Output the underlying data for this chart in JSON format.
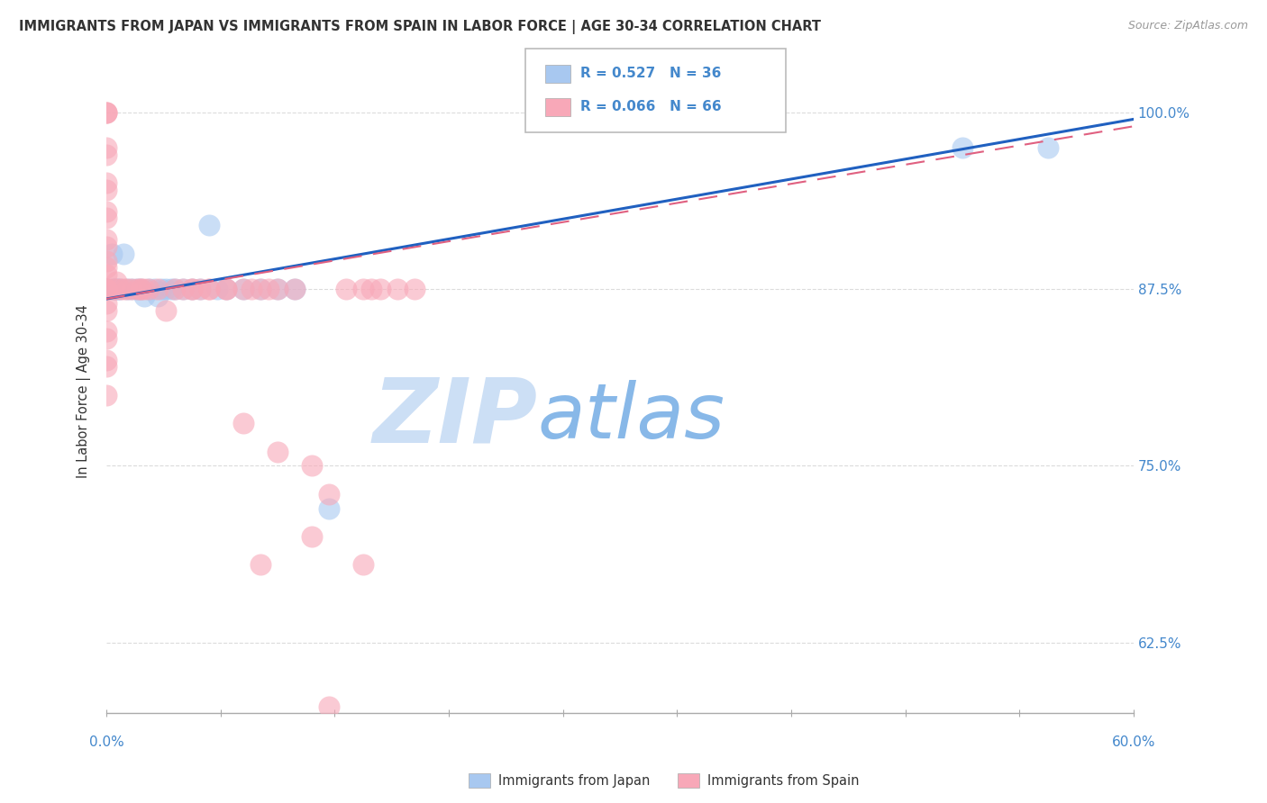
{
  "title": "IMMIGRANTS FROM JAPAN VS IMMIGRANTS FROM SPAIN IN LABOR FORCE | AGE 30-34 CORRELATION CHART",
  "source": "Source: ZipAtlas.com",
  "ylabel": "In Labor Force | Age 30-34",
  "ytick_labels": [
    "100.0%",
    "87.5%",
    "75.0%",
    "62.5%"
  ],
  "ytick_values": [
    1.0,
    0.875,
    0.75,
    0.625
  ],
  "xlim": [
    0.0,
    0.6
  ],
  "ylim": [
    0.575,
    1.03
  ],
  "legend_japan_r": "R = 0.527",
  "legend_japan_n": "N = 36",
  "legend_spain_r": "R = 0.066",
  "legend_spain_n": "N = 66",
  "japan_color": "#a8c8f0",
  "spain_color": "#f8a8b8",
  "japan_line_color": "#2060c0",
  "spain_line_color": "#e06080",
  "watermark_zip_color": "#ccdff5",
  "watermark_atlas_color": "#88b8e8",
  "grid_color": "#cccccc",
  "title_color": "#333333",
  "axis_label_color": "#4488cc",
  "japan_points": [
    [
      0.0,
      0.875
    ],
    [
      0.0,
      0.875
    ],
    [
      0.0,
      0.875
    ],
    [
      0.002,
      0.875
    ],
    [
      0.003,
      0.9
    ],
    [
      0.004,
      0.875
    ],
    [
      0.005,
      0.875
    ],
    [
      0.006,
      0.875
    ],
    [
      0.007,
      0.875
    ],
    [
      0.008,
      0.875
    ],
    [
      0.01,
      0.9
    ],
    [
      0.012,
      0.875
    ],
    [
      0.015,
      0.875
    ],
    [
      0.018,
      0.875
    ],
    [
      0.02,
      0.875
    ],
    [
      0.022,
      0.87
    ],
    [
      0.025,
      0.875
    ],
    [
      0.028,
      0.875
    ],
    [
      0.03,
      0.87
    ],
    [
      0.032,
      0.875
    ],
    [
      0.035,
      0.875
    ],
    [
      0.038,
      0.875
    ],
    [
      0.04,
      0.875
    ],
    [
      0.045,
      0.875
    ],
    [
      0.05,
      0.875
    ],
    [
      0.055,
      0.875
    ],
    [
      0.06,
      0.92
    ],
    [
      0.065,
      0.875
    ],
    [
      0.07,
      0.875
    ],
    [
      0.08,
      0.875
    ],
    [
      0.09,
      0.875
    ],
    [
      0.1,
      0.875
    ],
    [
      0.11,
      0.875
    ],
    [
      0.13,
      0.72
    ],
    [
      0.5,
      0.975
    ],
    [
      0.55,
      0.975
    ]
  ],
  "spain_points": [
    [
      0.0,
      1.0
    ],
    [
      0.0,
      1.0
    ],
    [
      0.0,
      1.0
    ],
    [
      0.0,
      0.975
    ],
    [
      0.0,
      0.97
    ],
    [
      0.0,
      0.95
    ],
    [
      0.0,
      0.945
    ],
    [
      0.0,
      0.93
    ],
    [
      0.0,
      0.925
    ],
    [
      0.0,
      0.91
    ],
    [
      0.0,
      0.905
    ],
    [
      0.0,
      0.895
    ],
    [
      0.0,
      0.89
    ],
    [
      0.0,
      0.885
    ],
    [
      0.0,
      0.875
    ],
    [
      0.0,
      0.875
    ],
    [
      0.0,
      0.875
    ],
    [
      0.0,
      0.865
    ],
    [
      0.0,
      0.86
    ],
    [
      0.0,
      0.845
    ],
    [
      0.0,
      0.84
    ],
    [
      0.0,
      0.825
    ],
    [
      0.0,
      0.82
    ],
    [
      0.0,
      0.8
    ],
    [
      0.005,
      0.875
    ],
    [
      0.006,
      0.88
    ],
    [
      0.008,
      0.875
    ],
    [
      0.01,
      0.875
    ],
    [
      0.012,
      0.875
    ],
    [
      0.015,
      0.875
    ],
    [
      0.018,
      0.875
    ],
    [
      0.02,
      0.875
    ],
    [
      0.022,
      0.875
    ],
    [
      0.025,
      0.875
    ],
    [
      0.03,
      0.875
    ],
    [
      0.035,
      0.86
    ],
    [
      0.04,
      0.875
    ],
    [
      0.045,
      0.875
    ],
    [
      0.05,
      0.875
    ],
    [
      0.055,
      0.875
    ],
    [
      0.06,
      0.875
    ],
    [
      0.07,
      0.875
    ],
    [
      0.08,
      0.78
    ],
    [
      0.085,
      0.875
    ],
    [
      0.09,
      0.875
    ],
    [
      0.095,
      0.875
    ],
    [
      0.1,
      0.875
    ],
    [
      0.11,
      0.875
    ],
    [
      0.12,
      0.75
    ],
    [
      0.13,
      0.73
    ],
    [
      0.14,
      0.875
    ],
    [
      0.15,
      0.875
    ],
    [
      0.155,
      0.875
    ],
    [
      0.16,
      0.875
    ],
    [
      0.17,
      0.875
    ],
    [
      0.18,
      0.875
    ],
    [
      0.02,
      0.875
    ],
    [
      0.1,
      0.76
    ],
    [
      0.13,
      0.58
    ],
    [
      0.15,
      0.68
    ],
    [
      0.09,
      0.68
    ],
    [
      0.12,
      0.7
    ],
    [
      0.05,
      0.875
    ],
    [
      0.06,
      0.875
    ],
    [
      0.07,
      0.875
    ],
    [
      0.08,
      0.875
    ]
  ],
  "japan_line_y0": 0.868,
  "japan_line_y1": 0.995,
  "spain_line_y0": 0.868,
  "spain_line_y1": 0.99
}
